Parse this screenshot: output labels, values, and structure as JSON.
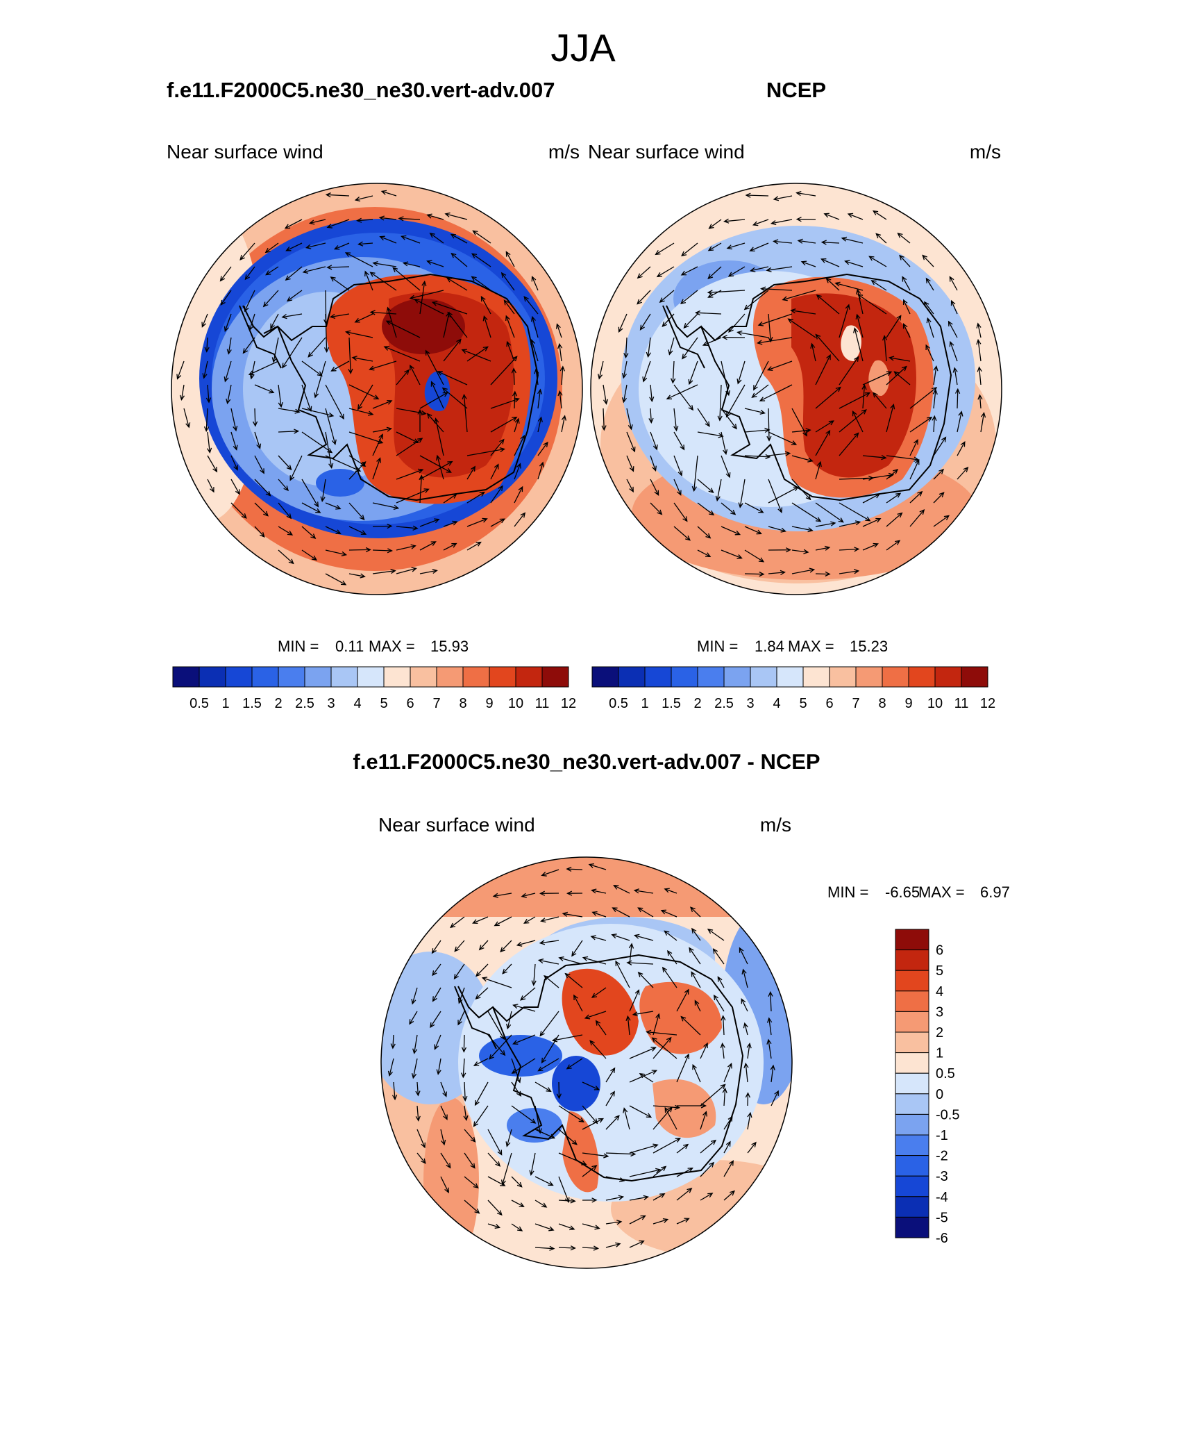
{
  "title": "JJA",
  "panels": [
    {
      "id": "model",
      "case_title": "f.e11.F2000C5.ne30_ne30.vert-adv.007",
      "variable": "Near surface wind",
      "units": "m/s",
      "min_label": "MIN =",
      "min_value": "0.11",
      "max_label": "MAX =",
      "max_value": "15.93",
      "levels": [
        "0.5",
        "1",
        "1.5",
        "2",
        "2.5",
        "3",
        "4",
        "5",
        "6",
        "7",
        "8",
        "9",
        "10",
        "11",
        "12"
      ]
    },
    {
      "id": "obs",
      "case_title": "NCEP",
      "variable": "Near surface wind",
      "units": "m/s",
      "min_label": "MIN =",
      "min_value": "1.84",
      "max_label": "MAX =",
      "max_value": "15.23",
      "levels": [
        "0.5",
        "1",
        "1.5",
        "2",
        "2.5",
        "3",
        "4",
        "5",
        "6",
        "7",
        "8",
        "9",
        "10",
        "11",
        "12"
      ]
    },
    {
      "id": "diff",
      "case_title": "f.e11.F2000C5.ne30_ne30.vert-adv.007 - NCEP",
      "variable": "Near surface wind",
      "units": "m/s",
      "min_label": "MIN =",
      "min_value": "-6.65",
      "max_label": "MAX =",
      "max_value": "6.97",
      "levels": [
        "6",
        "5",
        "4",
        "3",
        "2",
        "1",
        "0.5",
        "0",
        "-0.5",
        "-1",
        "-2",
        "-3",
        "-4",
        "-5",
        "-6"
      ]
    }
  ],
  "palette": [
    "#0a0f7a",
    "#0b2fb4",
    "#1647d6",
    "#2a62e6",
    "#4a7eee",
    "#7ba3f0",
    "#a9c6f5",
    "#d6e6fb",
    "#fde4d2",
    "#f9c0a0",
    "#f59a74",
    "#ef6f45",
    "#e2461e",
    "#c3260f",
    "#8e0c09"
  ]
}
